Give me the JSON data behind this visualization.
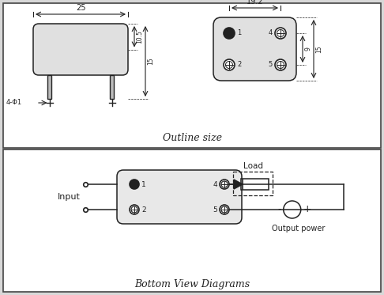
{
  "bg_color": "#d8d8d8",
  "panel_bg": "#ffffff",
  "line_color": "#444444",
  "dark_color": "#222222",
  "title_top": "Outline size",
  "title_bottom": "Bottom View Diagrams",
  "dim_25": "25",
  "dim_10_5": "10.5",
  "dim_15": "15",
  "dim_19_2": "19.2",
  "dim_9": "9",
  "dim_phi1": "4-Φ1",
  "label_input": "Input",
  "label_load": "Load",
  "label_output": "Output power",
  "figw": 4.86,
  "figh": 3.73,
  "dpi": 100
}
